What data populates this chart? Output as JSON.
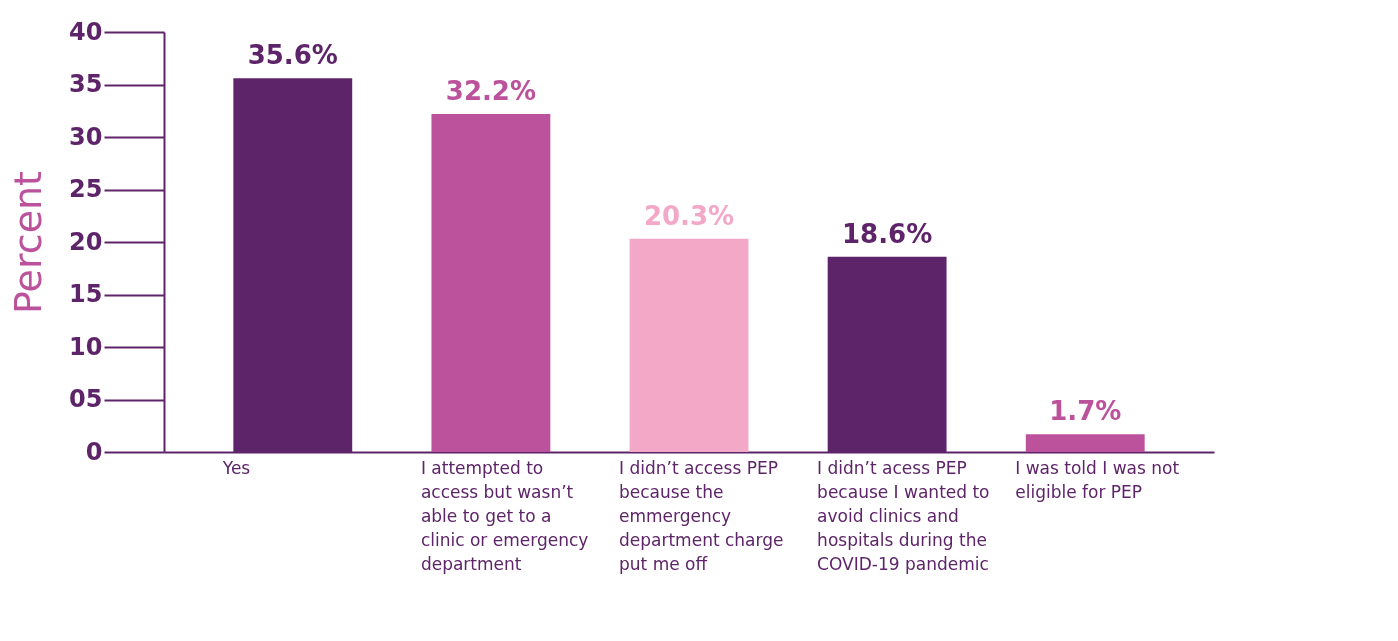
{
  "chart_data": {
    "type": "bar",
    "ylabel": "Percent",
    "categories": [
      "Yes",
      "I attempted to access but wasn’t able to get to a clinic or emergency department",
      "I didn’t access PEP because the emmergency department charge put me off",
      "I didn’t acess PEP because I wanted to avoid clinics and hospitals during the COVID-19 pandemic",
      "I was told I was not eligible for PEP"
    ],
    "values": [
      35.6,
      32.2,
      20.3,
      18.6,
      1.7
    ],
    "colors": [
      "#5e2469",
      "#bb529b",
      "#f4a8c8",
      "#5e2469",
      "#bb529b"
    ],
    "value_labels": [
      "35.6%",
      "32.2%",
      "20.3%",
      "18.6%",
      "1.7%"
    ],
    "ylim": [
      0,
      40
    ],
    "yticks": [
      0,
      {
        "value": 5,
        "label": "05"
      },
      10,
      15,
      20,
      25,
      30,
      35,
      40
    ],
    "grid": false
  }
}
